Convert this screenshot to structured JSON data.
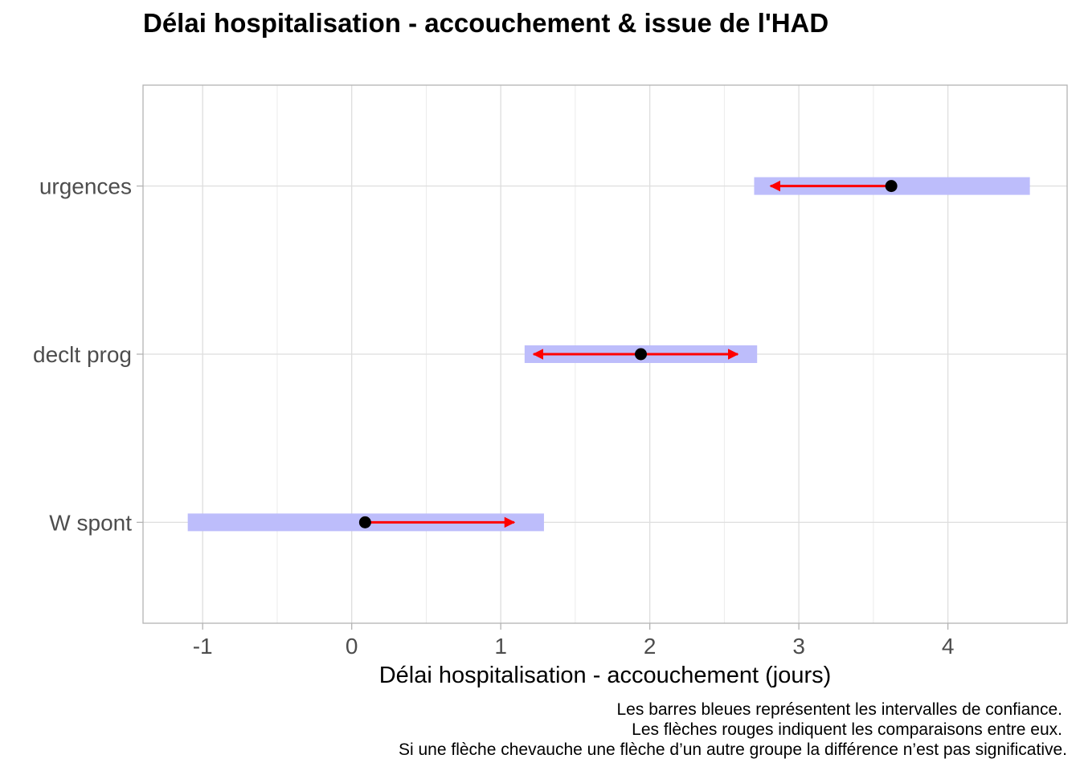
{
  "chart_data": {
    "type": "forest",
    "title": "Délai hospitalisation - accouchement & issue de l'HAD",
    "xlabel": "Délai hospitalisation - accouchement (jours)",
    "ylabel": "",
    "xlim": [
      -1.4,
      4.8
    ],
    "x_ticks": [
      "-1",
      "0",
      "1",
      "2",
      "3",
      "4"
    ],
    "grid": true,
    "categories": [
      "W spont",
      "declt prog",
      "urgences"
    ],
    "groups": [
      {
        "label": "W spont",
        "estimate": 0.09,
        "ci": [
          -1.1,
          1.29
        ],
        "arrows": [
          1.09
        ]
      },
      {
        "label": "declt prog",
        "estimate": 1.94,
        "ci": [
          1.16,
          2.72
        ],
        "arrows": [
          1.22,
          2.59
        ]
      },
      {
        "label": "urgences",
        "estimate": 3.62,
        "ci": [
          2.7,
          4.55
        ],
        "arrows": [
          2.81
        ]
      }
    ],
    "colors": {
      "ci_bar": "#bdbdfb",
      "arrow": "#ff0000",
      "point": "#000000"
    },
    "caption": [
      "Les barres bleues représentent les intervalles de confiance.",
      "Les flèches rouges indiquent les comparaisons entre eux.",
      "Si une flèche chevauche une flèche d’un autre groupe la différence n’est pas significative."
    ]
  }
}
